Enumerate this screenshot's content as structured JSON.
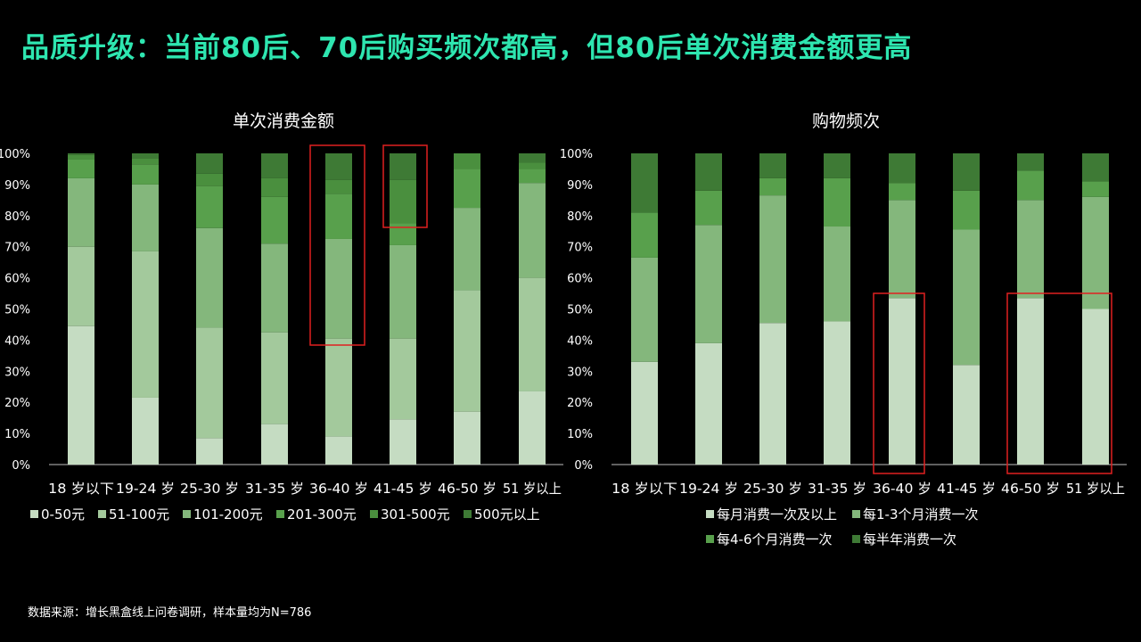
{
  "page": {
    "title": "品质升级：当前80后、70后购买频次都高，但80后单次消费金额更高",
    "source": "数据来源：增长黑盒线上问卷调研，样本量均为N=786"
  },
  "colors": {
    "title": "#2ee6b0",
    "highlight_box": "#e02020",
    "axis": "#bfbfbf"
  },
  "chart_data": [
    {
      "type": "bar",
      "stacked": true,
      "title": "单次消费金额",
      "categories": [
        "18 岁以下",
        "19-24 岁",
        "25-30 岁",
        "31-35 岁",
        "36-40 岁",
        "41-45 岁",
        "46-50 岁",
        "51 岁以上"
      ],
      "ylim": [
        0,
        100
      ],
      "yticks": [
        "0%",
        "10%",
        "20%",
        "30%",
        "40%",
        "50%",
        "60%",
        "70%",
        "80%",
        "90%",
        "100%"
      ],
      "legend_position": "bottom",
      "series": [
        {
          "name": "0-50元",
          "color": "#c5dcc2",
          "values": [
            44.5,
            21.5,
            8.5,
            13,
            9,
            14.5,
            17,
            23.5
          ]
        },
        {
          "name": "51-100元",
          "color": "#a3c99c",
          "values": [
            25.5,
            47,
            35.5,
            29.5,
            31.5,
            26,
            39,
            36.5
          ]
        },
        {
          "name": "101-200元",
          "color": "#84b77c",
          "values": [
            22,
            21.5,
            32,
            28.5,
            32,
            30,
            26.5,
            30.5
          ]
        },
        {
          "name": "201-300元",
          "color": "#58a04c",
          "values": [
            6,
            6.5,
            13.5,
            15,
            14.5,
            7,
            12.5,
            4.5
          ]
        },
        {
          "name": "301-500元",
          "color": "#4a8f3e",
          "values": [
            1.5,
            2,
            4,
            6,
            4.5,
            14,
            5,
            2
          ]
        },
        {
          "name": "500元以上",
          "color": "#3e7a35",
          "values": [
            0.5,
            1.5,
            6.5,
            8,
            8.5,
            8.5,
            0,
            3
          ]
        }
      ],
      "highlights": [
        "36-40 岁",
        "41-45 岁"
      ]
    },
    {
      "type": "bar",
      "stacked": true,
      "title": "购物频次",
      "categories": [
        "18 岁以下",
        "19-24 岁",
        "25-30 岁",
        "31-35 岁",
        "36-40 岁",
        "41-45 岁",
        "46-50 岁",
        "51 岁以上"
      ],
      "ylim": [
        0,
        100
      ],
      "yticks": [
        "0%",
        "10%",
        "20%",
        "30%",
        "40%",
        "50%",
        "60%",
        "70%",
        "80%",
        "90%",
        "100%"
      ],
      "legend_position": "bottom",
      "series": [
        {
          "name": "每月消费一次及以上",
          "color": "#c5dcc2",
          "values": [
            33,
            39,
            45.5,
            46,
            53.5,
            32,
            53.5,
            50
          ]
        },
        {
          "name": "每1-3个月消费一次",
          "color": "#84b77c",
          "values": [
            33.5,
            38,
            41,
            30.5,
            31.5,
            43.5,
            31.5,
            36
          ]
        },
        {
          "name": "每4-6个月消费一次",
          "color": "#58a04c",
          "values": [
            14.5,
            11,
            5.5,
            15.5,
            5.5,
            12.5,
            9.5,
            5
          ]
        },
        {
          "name": "每半年消费一次",
          "color": "#3e7a35",
          "values": [
            19,
            12,
            8,
            8,
            9.5,
            12,
            5.5,
            9
          ]
        }
      ],
      "highlights": [
        "36-40 岁",
        "46-50 岁",
        "51 岁以上"
      ]
    }
  ]
}
